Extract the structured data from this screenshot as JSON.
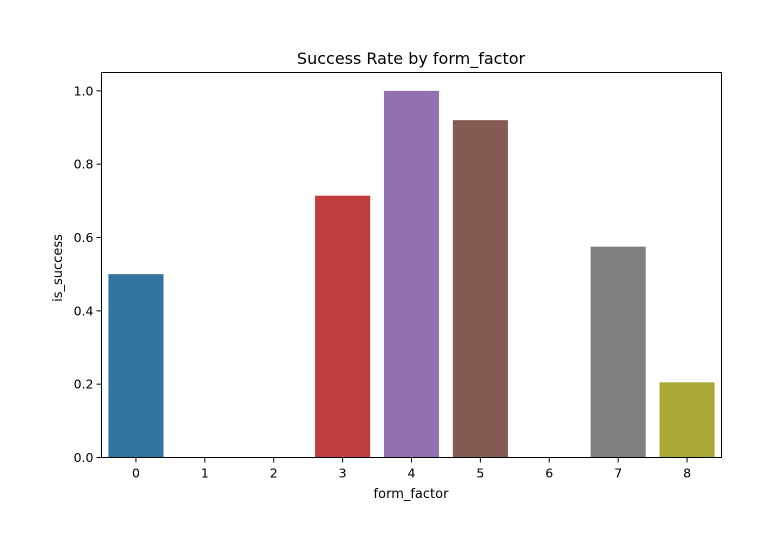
{
  "chart_data": {
    "type": "bar",
    "title": "Success Rate by form_factor",
    "xlabel": "form_factor",
    "ylabel": "is_success",
    "categories": [
      "0",
      "1",
      "2",
      "3",
      "4",
      "5",
      "6",
      "7",
      "8"
    ],
    "values": [
      0.5,
      0.0,
      0.0,
      0.714,
      1.0,
      0.92,
      0.0,
      0.575,
      0.205
    ],
    "colors": [
      "#3274a1",
      "#e1812c",
      "#3a923a",
      "#c03d3e",
      "#9372b2",
      "#845b53",
      "#d684bd",
      "#7f7f7f",
      "#a9aa35"
    ],
    "ylim": [
      0,
      1.05
    ],
    "yticks": [
      0.0,
      0.2,
      0.4,
      0.6,
      0.8,
      1.0
    ],
    "ytick_labels": [
      "0.0",
      "0.2",
      "0.4",
      "0.6",
      "0.8",
      "1.0"
    ],
    "grid": false,
    "legend": "none"
  }
}
